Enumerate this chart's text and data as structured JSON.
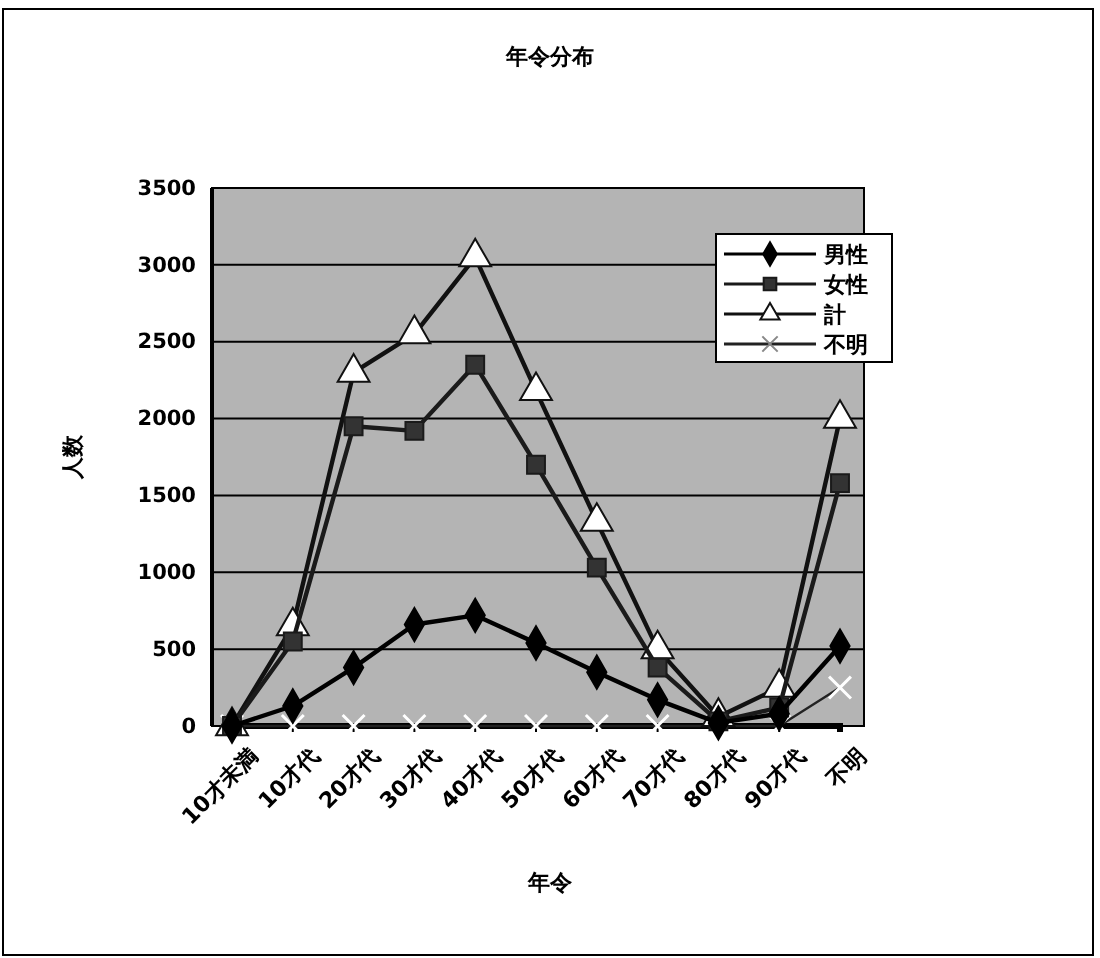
{
  "chart_data": {
    "type": "line",
    "title": "年令分布",
    "xlabel": "年令",
    "ylabel": "人数",
    "categories": [
      "10才未満",
      "10才代",
      "20才代",
      "30才代",
      "40才代",
      "50才代",
      "60才代",
      "70才代",
      "80才代",
      "90才代",
      "不明"
    ],
    "series": [
      {
        "name": "男性",
        "color": "#000000",
        "marker": "diamond",
        "values": [
          0,
          130,
          380,
          660,
          720,
          540,
          350,
          170,
          20,
          80,
          520
        ]
      },
      {
        "name": "女性",
        "color": "#1a1a1a",
        "marker": "square",
        "values": [
          0,
          550,
          1950,
          1920,
          2350,
          1700,
          1030,
          380,
          30,
          120,
          1580
        ]
      },
      {
        "name": "計",
        "color": "#111111",
        "marker": "triangle",
        "values": [
          0,
          650,
          2300,
          2550,
          3050,
          2180,
          1330,
          500,
          60,
          250,
          2000
        ]
      },
      {
        "name": "不明",
        "color": "#222222",
        "marker": "cross",
        "values": [
          0,
          0,
          0,
          0,
          0,
          0,
          0,
          0,
          0,
          0,
          250
        ]
      }
    ],
    "ylim": [
      0,
      3500
    ],
    "yticks": [
      0,
      500,
      1000,
      1500,
      2000,
      2500,
      3000,
      3500
    ],
    "grid": "y",
    "legend": "top right"
  }
}
